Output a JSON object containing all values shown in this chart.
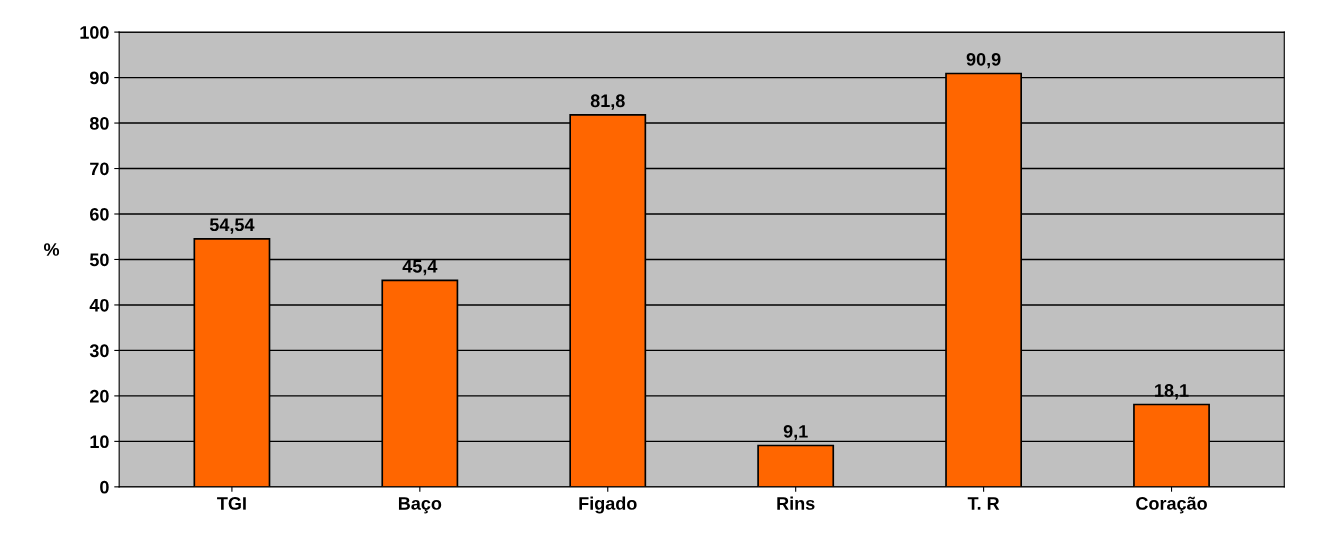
{
  "chart_data": {
    "type": "bar",
    "ylabel": "%",
    "categories": [
      "TGI",
      "Baço",
      "Figado",
      "Rins",
      "T. R",
      "Coração"
    ],
    "values": [
      54.54,
      45.4,
      81.8,
      9.1,
      90.9,
      18.1
    ],
    "value_labels": [
      "54,54",
      "45,4",
      "81,8",
      "9,1",
      "90,9",
      "18,1"
    ],
    "color": "#ff6600",
    "ylim": [
      0,
      100
    ],
    "yticks": [
      0,
      10,
      20,
      30,
      40,
      50,
      60,
      70,
      80,
      90,
      100
    ],
    "grid": "y",
    "legend": false
  }
}
